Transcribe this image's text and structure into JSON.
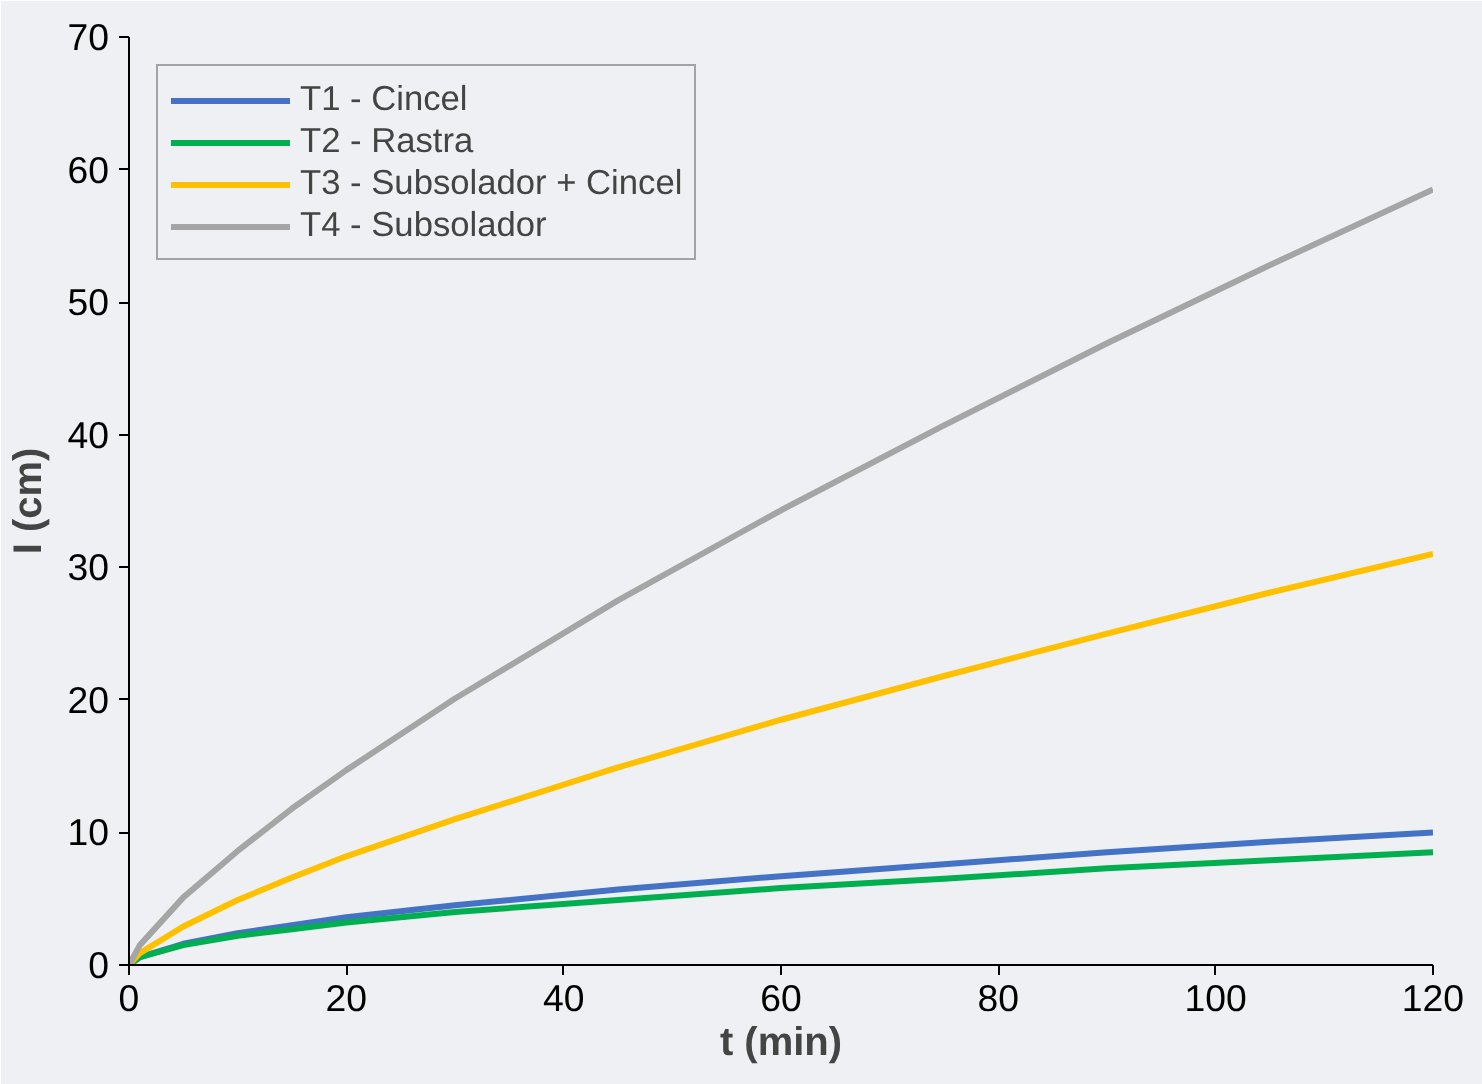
{
  "chart_data": {
    "type": "line",
    "xlabel": "t (min)",
    "ylabel": "I (cm)",
    "x": [
      0,
      1,
      5,
      10,
      15,
      20,
      30,
      45,
      60,
      75,
      90,
      105,
      120
    ],
    "series": [
      {
        "name": "T1 - Cincel",
        "color": "#4472c4",
        "values": [
          0,
          0.6,
          1.6,
          2.4,
          3.0,
          3.6,
          4.5,
          5.7,
          6.7,
          7.6,
          8.5,
          9.3,
          10
        ]
      },
      {
        "name": "T2 - Rastra",
        "color": "#00b050",
        "values": [
          0,
          0.6,
          1.5,
          2.2,
          2.7,
          3.2,
          4.0,
          4.9,
          5.8,
          6.5,
          7.3,
          7.9,
          8.5
        ]
      },
      {
        "name": "T3 - Subsolador + Cincel",
        "color": "#ffc000",
        "values": [
          0,
          0.9,
          2.9,
          4.9,
          6.6,
          8.2,
          11.0,
          14.9,
          18.5,
          21.8,
          25.0,
          28.1,
          31
        ]
      },
      {
        "name": "T4 - Subsolador",
        "color": "#a5a5a5",
        "values": [
          0,
          1.5,
          5.1,
          8.6,
          11.8,
          14.7,
          20.1,
          27.5,
          34.3,
          40.7,
          46.9,
          52.8,
          58.5
        ]
      }
    ],
    "xlim": [
      0,
      120
    ],
    "xticks": [
      0,
      20,
      40,
      60,
      80,
      100,
      120
    ],
    "ylim": [
      0,
      70
    ],
    "yticks": [
      0,
      10,
      20,
      30,
      40,
      50,
      60,
      70
    ],
    "grid": false,
    "legend": "top left",
    "marker": "none",
    "line_style": "solid"
  }
}
